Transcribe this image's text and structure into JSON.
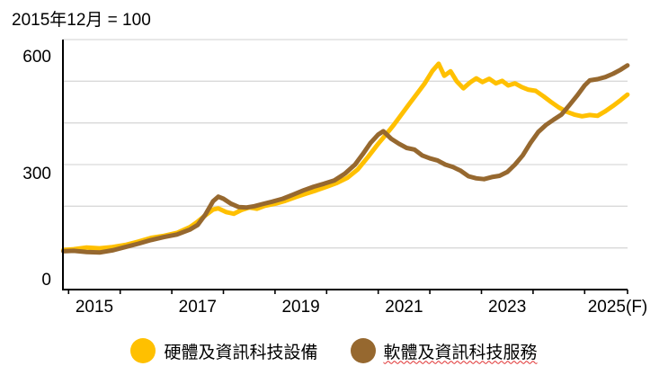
{
  "chart_data": {
    "type": "line",
    "title": "2015年12月 = 100",
    "xlabel": "",
    "ylabel": "",
    "ylim": [
      0,
      600
    ],
    "y_ticks": [
      0,
      300,
      600
    ],
    "y_gridlines": [
      100,
      200,
      300,
      400,
      500,
      600
    ],
    "x_tick_labels": [
      "2015",
      "2017",
      "2019",
      "2021",
      "2023",
      "2025(F)"
    ],
    "x_tick_years": [
      2015,
      2017,
      2019,
      2021,
      2023,
      2025
    ],
    "x_range_years": [
      2014.9,
      2025.83
    ],
    "grid": "horizontal",
    "legend_position": "bottom",
    "colors": {
      "hardware": "#FFC000",
      "software": "#96682F",
      "gridline": "#D9D9D9",
      "axis": "#000000",
      "squiggle": "#E03030"
    },
    "series": [
      {
        "name": "硬體及資訊科技設備",
        "color": "#FFC000",
        "points": [
          [
            2014.9,
            95
          ],
          [
            2015.1,
            97
          ],
          [
            2015.35,
            101
          ],
          [
            2015.6,
            99
          ],
          [
            2015.85,
            102
          ],
          [
            2016.1,
            107
          ],
          [
            2016.35,
            115
          ],
          [
            2016.6,
            124
          ],
          [
            2016.85,
            129
          ],
          [
            2017.1,
            136
          ],
          [
            2017.35,
            150
          ],
          [
            2017.5,
            163
          ],
          [
            2017.65,
            178
          ],
          [
            2017.8,
            192
          ],
          [
            2017.9,
            195
          ],
          [
            2018.05,
            186
          ],
          [
            2018.2,
            182
          ],
          [
            2018.35,
            191
          ],
          [
            2018.5,
            197
          ],
          [
            2018.65,
            194
          ],
          [
            2018.8,
            201
          ],
          [
            2019.0,
            206
          ],
          [
            2019.2,
            213
          ],
          [
            2019.4,
            222
          ],
          [
            2019.6,
            230
          ],
          [
            2019.8,
            238
          ],
          [
            2020.0,
            247
          ],
          [
            2020.2,
            256
          ],
          [
            2020.4,
            268
          ],
          [
            2020.6,
            288
          ],
          [
            2020.8,
            318
          ],
          [
            2021.0,
            350
          ],
          [
            2021.15,
            372
          ],
          [
            2021.3,
            395
          ],
          [
            2021.45,
            420
          ],
          [
            2021.6,
            445
          ],
          [
            2021.75,
            470
          ],
          [
            2021.9,
            495
          ],
          [
            2022.05,
            525
          ],
          [
            2022.17,
            542
          ],
          [
            2022.28,
            513
          ],
          [
            2022.4,
            524
          ],
          [
            2022.52,
            500
          ],
          [
            2022.65,
            483
          ],
          [
            2022.78,
            497
          ],
          [
            2022.9,
            507
          ],
          [
            2023.02,
            498
          ],
          [
            2023.15,
            506
          ],
          [
            2023.28,
            495
          ],
          [
            2023.4,
            501
          ],
          [
            2023.52,
            490
          ],
          [
            2023.65,
            495
          ],
          [
            2023.78,
            486
          ],
          [
            2023.9,
            480
          ],
          [
            2024.05,
            477
          ],
          [
            2024.2,
            464
          ],
          [
            2024.35,
            450
          ],
          [
            2024.5,
            437
          ],
          [
            2024.65,
            427
          ],
          [
            2024.8,
            420
          ],
          [
            2024.95,
            416
          ],
          [
            2025.1,
            419
          ],
          [
            2025.25,
            417
          ],
          [
            2025.4,
            428
          ],
          [
            2025.55,
            441
          ],
          [
            2025.7,
            455
          ],
          [
            2025.83,
            468
          ]
        ]
      },
      {
        "name": "軟體及資訊科技服務",
        "color": "#96682F",
        "misspell_underline": true,
        "points": [
          [
            2014.9,
            92
          ],
          [
            2015.1,
            93
          ],
          [
            2015.35,
            90
          ],
          [
            2015.6,
            89
          ],
          [
            2015.85,
            94
          ],
          [
            2016.1,
            102
          ],
          [
            2016.35,
            110
          ],
          [
            2016.6,
            119
          ],
          [
            2016.85,
            126
          ],
          [
            2017.1,
            132
          ],
          [
            2017.35,
            144
          ],
          [
            2017.5,
            155
          ],
          [
            2017.65,
            180
          ],
          [
            2017.8,
            212
          ],
          [
            2017.9,
            223
          ],
          [
            2018.0,
            218
          ],
          [
            2018.15,
            206
          ],
          [
            2018.3,
            198
          ],
          [
            2018.45,
            197
          ],
          [
            2018.6,
            200
          ],
          [
            2018.75,
            205
          ],
          [
            2018.95,
            211
          ],
          [
            2019.15,
            218
          ],
          [
            2019.35,
            228
          ],
          [
            2019.55,
            238
          ],
          [
            2019.75,
            247
          ],
          [
            2019.95,
            254
          ],
          [
            2020.15,
            262
          ],
          [
            2020.35,
            278
          ],
          [
            2020.55,
            300
          ],
          [
            2020.7,
            325
          ],
          [
            2020.85,
            352
          ],
          [
            2021.0,
            372
          ],
          [
            2021.1,
            380
          ],
          [
            2021.25,
            362
          ],
          [
            2021.4,
            350
          ],
          [
            2021.55,
            340
          ],
          [
            2021.7,
            336
          ],
          [
            2021.85,
            322
          ],
          [
            2022.0,
            315
          ],
          [
            2022.15,
            310
          ],
          [
            2022.3,
            300
          ],
          [
            2022.45,
            294
          ],
          [
            2022.6,
            285
          ],
          [
            2022.75,
            272
          ],
          [
            2022.9,
            267
          ],
          [
            2023.05,
            265
          ],
          [
            2023.2,
            270
          ],
          [
            2023.35,
            273
          ],
          [
            2023.5,
            282
          ],
          [
            2023.65,
            300
          ],
          [
            2023.8,
            322
          ],
          [
            2023.95,
            352
          ],
          [
            2024.1,
            378
          ],
          [
            2024.25,
            395
          ],
          [
            2024.4,
            408
          ],
          [
            2024.55,
            420
          ],
          [
            2024.7,
            442
          ],
          [
            2024.85,
            465
          ],
          [
            2025.0,
            490
          ],
          [
            2025.1,
            502
          ],
          [
            2025.25,
            505
          ],
          [
            2025.4,
            510
          ],
          [
            2025.55,
            518
          ],
          [
            2025.7,
            528
          ],
          [
            2025.83,
            538
          ]
        ]
      }
    ]
  }
}
